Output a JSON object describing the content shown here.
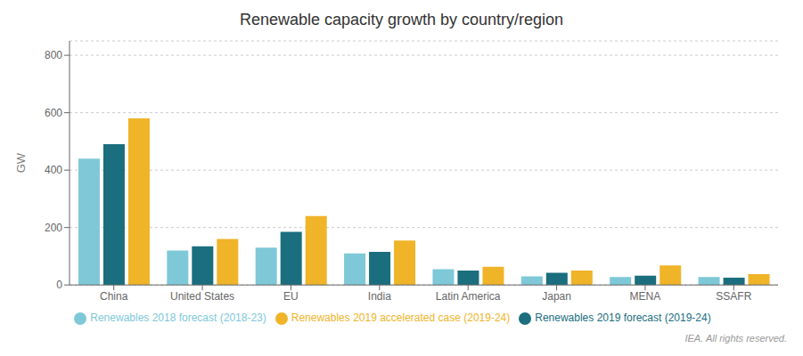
{
  "chart_data": {
    "type": "bar",
    "title": "Renewable capacity growth by country/region",
    "categories": [
      "China",
      "United States",
      "EU",
      "India",
      "Latin America",
      "Japan",
      "MENA",
      "SSAFR"
    ],
    "series": [
      {
        "name": "Renewables 2018 forecast (2018-23)",
        "color": "#7ec8d8",
        "values": [
          440,
          120,
          130,
          110,
          55,
          30,
          28,
          28
        ]
      },
      {
        "name": "Renewables 2019 forecast (2019-24)",
        "color": "#1a6e7e",
        "values": [
          490,
          135,
          185,
          115,
          50,
          42,
          32,
          25
        ]
      },
      {
        "name": "Renewables 2019 accelerated case (2019-24)",
        "color": "#f0b429",
        "values": [
          580,
          160,
          240,
          155,
          63,
          50,
          68,
          38
        ]
      }
    ],
    "ylabel": "GW",
    "ylim": [
      0,
      850
    ],
    "yticks": [
      0,
      200,
      400,
      600,
      800
    ],
    "grid": true,
    "legend": "bottom",
    "annotations": [
      "IEA. All rights reserved."
    ]
  }
}
